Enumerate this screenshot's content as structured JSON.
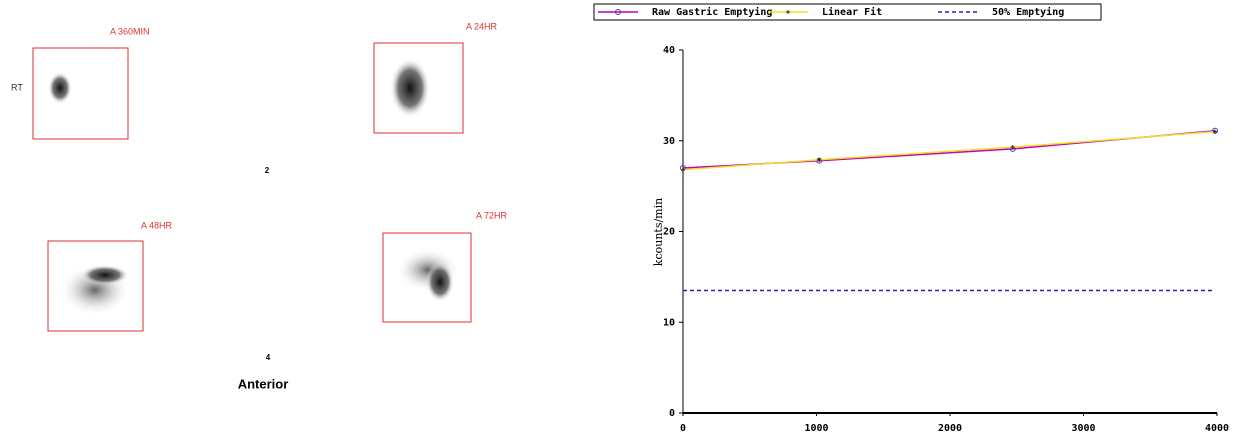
{
  "panel": {
    "side_label": "RT",
    "images": [
      {
        "label": "A 360MIN"
      },
      {
        "label": "A 24HR"
      },
      {
        "label": "A 48HR"
      },
      {
        "label": "A 72HR"
      }
    ],
    "page_numbers": [
      "2",
      "4"
    ],
    "view": "Anterior"
  },
  "chart_data": {
    "type": "line",
    "y_label": "kcounts/min",
    "x": [
      0,
      1020,
      2470,
      3985
    ],
    "series": [
      {
        "name": "Raw Gastric Emptying",
        "color": "#c000c0",
        "marker": "circle",
        "values": [
          27.0,
          27.8,
          29.1,
          31.1
        ]
      },
      {
        "name": "Linear Fit",
        "color": "#f0e020",
        "marker": "plus",
        "values": [
          26.8,
          27.9,
          29.3,
          31.0
        ]
      },
      {
        "name": "50% Emptying",
        "color": "#2020c0",
        "dashed": true,
        "values": [
          13.5,
          13.5,
          13.5,
          13.5
        ]
      }
    ],
    "xlim": [
      0,
      4000
    ],
    "xticks": [
      0,
      1000,
      2000,
      3000,
      4000
    ],
    "ylim": [
      0,
      40
    ],
    "yticks": [
      0,
      10,
      20,
      30,
      40
    ]
  }
}
